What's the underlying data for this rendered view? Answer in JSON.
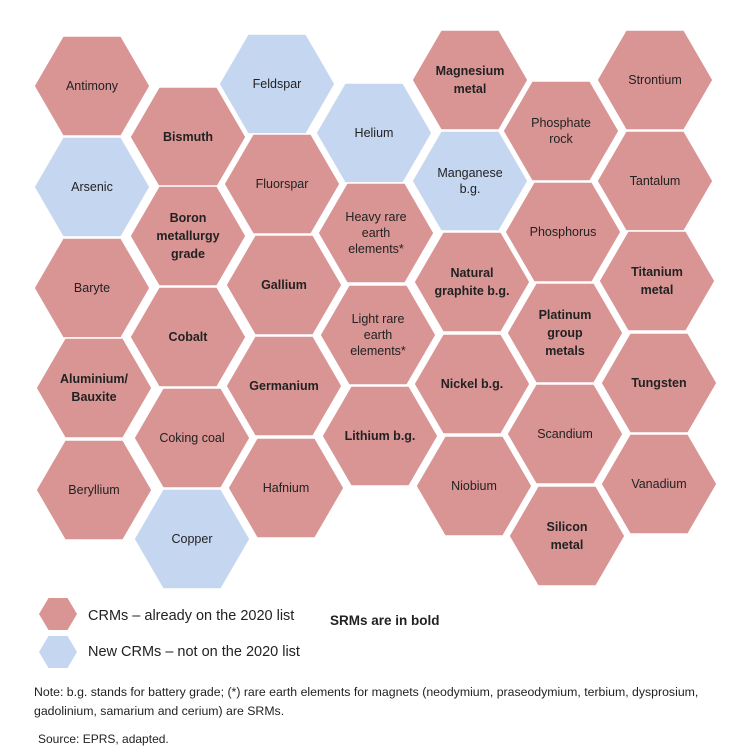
{
  "colors": {
    "existing": "#d99594",
    "new": "#c5d6f1"
  },
  "hexagons": [
    {
      "label": "Antimony",
      "type": "existing",
      "bold": false
    },
    {
      "label": "Arsenic",
      "type": "new",
      "bold": false
    },
    {
      "label": "Baryte",
      "type": "existing",
      "bold": false
    },
    {
      "label": "Aluminium/ Bauxite",
      "type": "existing",
      "bold": true
    },
    {
      "label": "Beryllium",
      "type": "existing",
      "bold": false
    },
    {
      "label": "Bismuth",
      "type": "existing",
      "bold": true
    },
    {
      "label": "Boron metallurgy grade",
      "type": "existing",
      "bold": true
    },
    {
      "label": "Cobalt",
      "type": "existing",
      "bold": true
    },
    {
      "label": "Coking coal",
      "type": "existing",
      "bold": false
    },
    {
      "label": "Copper",
      "type": "new",
      "bold": false
    },
    {
      "label": "Feldspar",
      "type": "new",
      "bold": false
    },
    {
      "label": "Fluorspar",
      "type": "existing",
      "bold": false
    },
    {
      "label": "Gallium",
      "type": "existing",
      "bold": true
    },
    {
      "label": "Germanium",
      "type": "existing",
      "bold": true
    },
    {
      "label": "Hafnium",
      "type": "existing",
      "bold": false
    },
    {
      "label": "Helium",
      "type": "new",
      "bold": false
    },
    {
      "label": "Heavy rare earth elements*",
      "type": "existing",
      "bold": false
    },
    {
      "label": "Light rare earth elements*",
      "type": "existing",
      "bold": false
    },
    {
      "label": "Lithium b.g.",
      "type": "existing",
      "bold": true
    },
    {
      "label": "Magnesium metal",
      "type": "existing",
      "bold": true
    },
    {
      "label": "Manganese b.g.",
      "type": "new",
      "bold": false
    },
    {
      "label": "Natural graphite b.g.",
      "type": "existing",
      "bold": true
    },
    {
      "label": "Nickel b.g.",
      "type": "existing",
      "bold": true
    },
    {
      "label": "Niobium",
      "type": "existing",
      "bold": false
    },
    {
      "label": "Phosphate rock",
      "type": "existing",
      "bold": false
    },
    {
      "label": "Phosphorus",
      "type": "existing",
      "bold": false
    },
    {
      "label": "Platinum group metals",
      "type": "existing",
      "bold": true
    },
    {
      "label": "Scandium",
      "type": "existing",
      "bold": false
    },
    {
      "label": "Silicon metal",
      "type": "existing",
      "bold": true
    },
    {
      "label": "Strontium",
      "type": "existing",
      "bold": false
    },
    {
      "label": "Tantalum",
      "type": "existing",
      "bold": false
    },
    {
      "label": "Titanium metal",
      "type": "existing",
      "bold": true
    },
    {
      "label": "Tungsten",
      "type": "existing",
      "bold": true
    },
    {
      "label": "Vanadium",
      "type": "existing",
      "bold": false
    }
  ],
  "legend": {
    "existing_label": "CRMs – already on the 2020 list",
    "new_label": "New CRMs – not on the 2020 list",
    "bold_note": "SRMs are in bold"
  },
  "note": "Note: b.g. stands for battery grade; (*) rare earth elements for magnets (neodymium, praseodymium, terbium, dysprosium, gadolinium, samarium and cerium) are SRMs.",
  "source": "Source: EPRS, adapted."
}
